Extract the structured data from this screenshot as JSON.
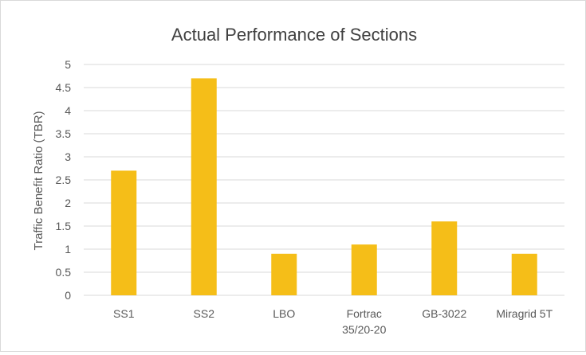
{
  "chart_data": {
    "type": "bar",
    "title": "Actual Performance of Sections",
    "xlabel": "",
    "ylabel": "Traffic Benefit Ratio (TBR)",
    "categories": [
      [
        "SS1"
      ],
      [
        "SS2"
      ],
      [
        "LBO"
      ],
      [
        "Fortrac",
        "35/20-20"
      ],
      [
        "GB-3022"
      ],
      [
        "Miragrid 5T"
      ]
    ],
    "values": [
      2.7,
      4.7,
      0.9,
      1.1,
      1.6,
      0.9
    ],
    "ylim": [
      0,
      5
    ],
    "yticks": [
      "0",
      "0.5",
      "1",
      "1.5",
      "2",
      "2.5",
      "3",
      "3.5",
      "4",
      "4.5",
      "5"
    ],
    "grid": true,
    "colors": {
      "bar": "#F5BE18",
      "grid": "#d9d9d9",
      "text": "#595959",
      "title": "#404040"
    }
  }
}
